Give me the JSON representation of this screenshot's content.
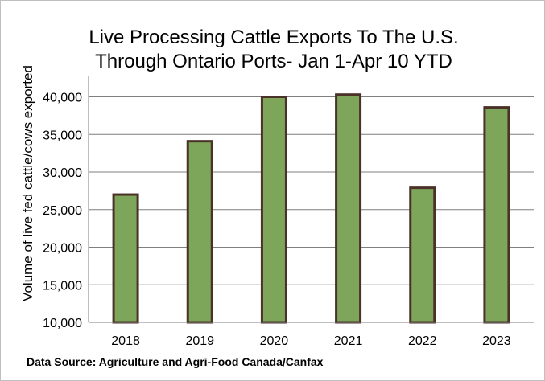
{
  "chart_data": {
    "type": "bar",
    "title": [
      "Live Processing Cattle Exports To The U.S.",
      "Through Ontario Ports-   Jan 1-Apr 10 YTD"
    ],
    "ylabel": "Volume of live fed cattle/cows exported",
    "xlabel": "",
    "categories": [
      "2018",
      "2019",
      "2020",
      "2021",
      "2022",
      "2023"
    ],
    "values": [
      27000,
      34100,
      40000,
      40300,
      27900,
      38600
    ],
    "ylim": [
      10000,
      40000
    ],
    "y_ticks": [
      10000,
      15000,
      20000,
      25000,
      30000,
      35000,
      40000
    ],
    "y_tick_labels": [
      "10,000",
      "15,000",
      "20,000",
      "25,000",
      "30,000",
      "35,000",
      "40,000"
    ],
    "grid": true,
    "legend": "none",
    "source_note": "Data Source: Agriculture and Agri-Food Canada/Canfax",
    "colors": {
      "bar_fill": "#7ea65a",
      "bar_stroke": "#4a3228",
      "gridline": "#7f7f7f",
      "axis": "#7f7f7f"
    }
  }
}
